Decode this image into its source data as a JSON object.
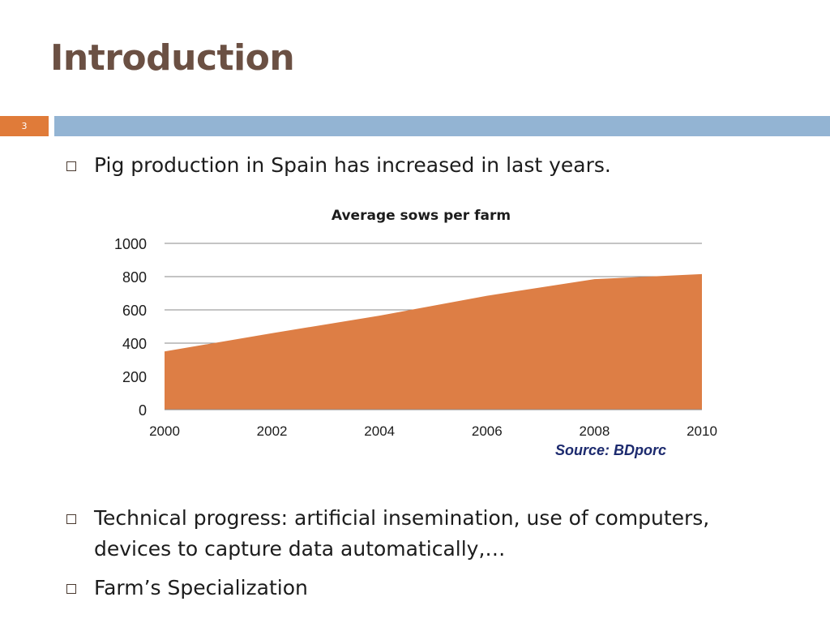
{
  "slide": {
    "title": "Introduction",
    "number": "3",
    "accent_color": "#e07b39",
    "bar_color": "#93b4d3"
  },
  "bullets": [
    "Pig production in Spain has increased in last years.",
    "Technical progress: artificial insemination, use of computers, devices to capture data automatically,…",
    "Farm’s Specialization"
  ],
  "source": "Source: BDporc",
  "chart_data": {
    "type": "area",
    "title": "Average sows per farm",
    "xlabel": "",
    "ylabel": "",
    "x": [
      2000,
      2002,
      2004,
      2006,
      2008,
      2010
    ],
    "x_ticks": [
      "2000",
      "2002",
      "2004",
      "2006",
      "2008",
      "2010"
    ],
    "y_ticks": [
      "0",
      "200",
      "400",
      "600",
      "800",
      "1000"
    ],
    "series": [
      {
        "values": [
          350,
          460,
          565,
          685,
          785,
          815
        ],
        "color": "#dd7e45"
      }
    ],
    "xlim": [
      2000,
      2010
    ],
    "ylim": [
      0,
      1000
    ],
    "grid": true,
    "legend": "none"
  }
}
